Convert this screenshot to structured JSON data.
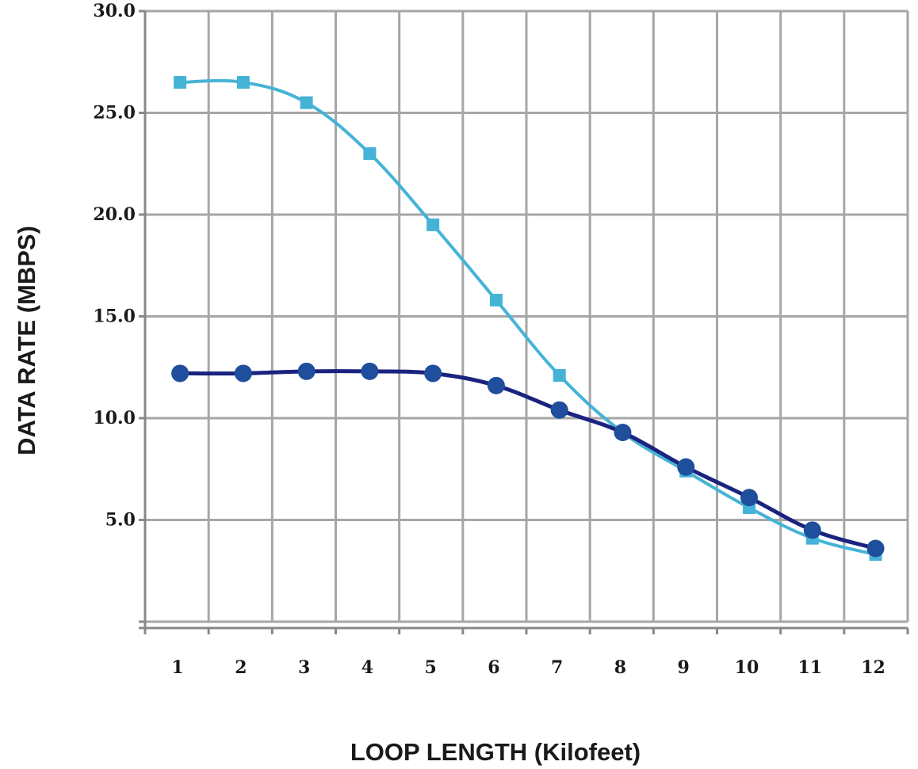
{
  "chart_data": {
    "type": "line",
    "xlabel": "LOOP LENGTH (Kilofeet)",
    "ylabel": "DATA RATE (MBPS)",
    "ylim": [
      0,
      30
    ],
    "yticks": [
      "5.0",
      "10.0",
      "15.0",
      "20.0",
      "25.0",
      "30.0"
    ],
    "categories": [
      "1",
      "2",
      "3",
      "4",
      "5",
      "6",
      "7",
      "8",
      "9",
      "10",
      "11",
      "12"
    ],
    "grid": true,
    "series": [
      {
        "marker": "square",
        "color": "#45b3d6",
        "values": [
          26.5,
          26.5,
          25.5,
          23.0,
          19.5,
          15.8,
          12.1,
          9.3,
          7.4,
          5.6,
          4.1,
          3.3
        ]
      },
      {
        "marker": "circle",
        "color": "#1a237e",
        "marker_color": "#1f4e9c",
        "values": [
          12.2,
          12.2,
          12.3,
          12.3,
          12.2,
          11.6,
          10.4,
          9.3,
          7.6,
          6.1,
          4.5,
          3.6
        ]
      }
    ]
  }
}
